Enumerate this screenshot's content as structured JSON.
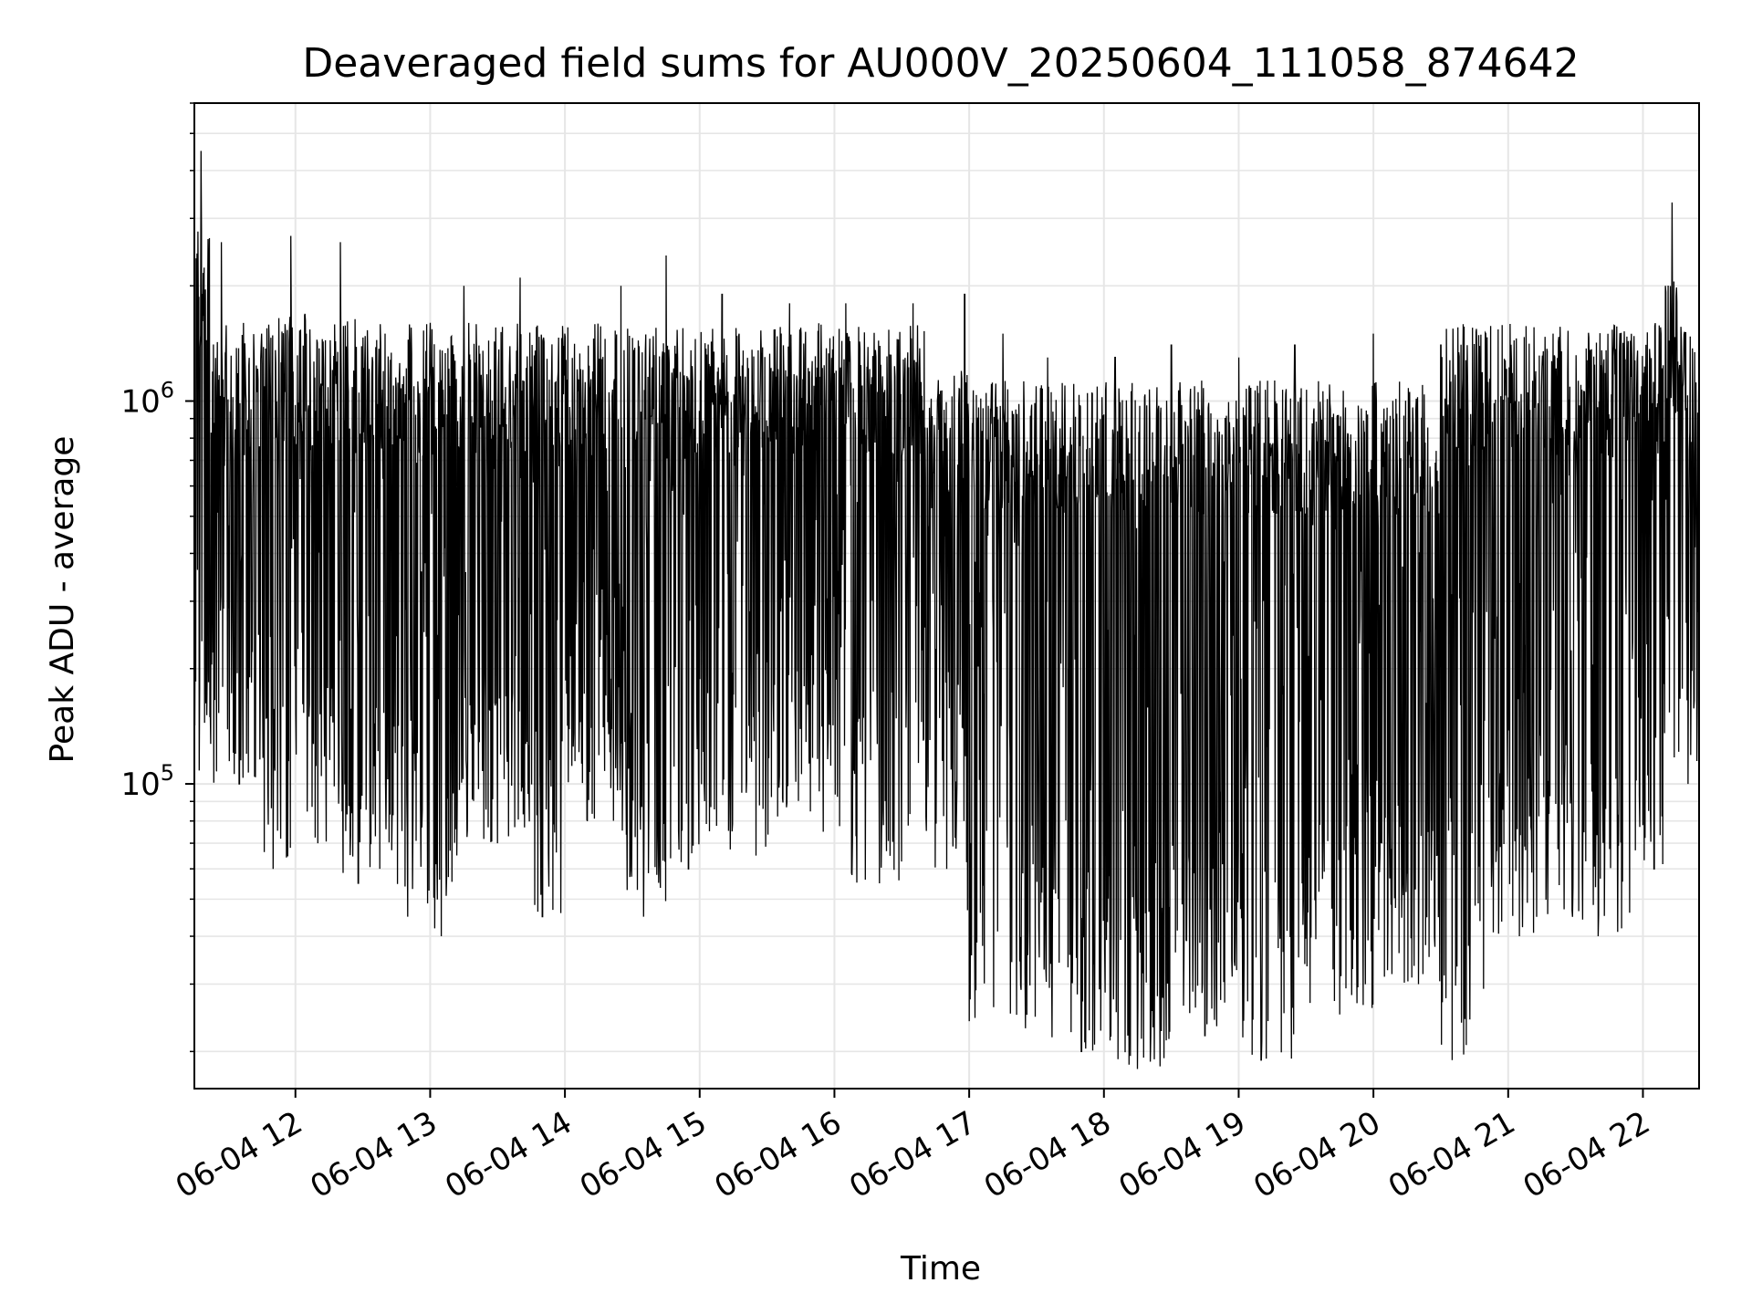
{
  "chart_data": {
    "type": "line",
    "title": "Deaveraged field sums for AU000V_20250604_111058_874642",
    "xlabel": "Time",
    "ylabel": "Peak ADU - average",
    "yscale": "log",
    "ylim": [
      16000,
      6000000
    ],
    "xlim": [
      "2025-06-04 11:15",
      "2025-06-04 22:25"
    ],
    "x_tick_labels": [
      "06-04 12",
      "06-04 13",
      "06-04 14",
      "06-04 15",
      "06-04 16",
      "06-04 17",
      "06-04 18",
      "06-04 19",
      "06-04 20",
      "06-04 21",
      "06-04 22"
    ],
    "x_tick_times": [
      "2025-06-04 12:00",
      "2025-06-04 13:00",
      "2025-06-04 14:00",
      "2025-06-04 15:00",
      "2025-06-04 16:00",
      "2025-06-04 17:00",
      "2025-06-04 18:00",
      "2025-06-04 19:00",
      "2025-06-04 20:00",
      "2025-06-04 21:00",
      "2025-06-04 22:00"
    ],
    "y_tick_values": [
      100000,
      1000000
    ],
    "y_tick_labels": [
      {
        "base": "10",
        "exp": "5"
      },
      {
        "base": "10",
        "exp": "6"
      }
    ],
    "grid": true,
    "line_color": "#000000",
    "grid_color": "#e6e6e6",
    "series": [
      {
        "x_start": "2025-06-04 11:15",
        "x_end": "2025-06-04 22:25",
        "points": [
          [
            "2025-06-04 11:15",
            900000
          ],
          [
            "2025-06-04 11:18",
            4500000
          ],
          [
            "2025-06-04 11:22",
            150000
          ],
          [
            "2025-06-04 11:27",
            2600000
          ],
          [
            "2025-06-04 11:35",
            100000
          ],
          [
            "2025-06-04 11:45",
            1500000
          ],
          [
            "2025-06-04 11:50",
            60000
          ],
          [
            "2025-06-04 11:58",
            2700000
          ],
          [
            "2025-06-04 12:05",
            400000
          ],
          [
            "2025-06-04 12:10",
            70000
          ],
          [
            "2025-06-04 12:20",
            2600000
          ],
          [
            "2025-06-04 12:28",
            55000
          ],
          [
            "2025-06-04 12:40",
            1500000
          ],
          [
            "2025-06-04 12:50",
            45000
          ],
          [
            "2025-06-04 13:00",
            1600000
          ],
          [
            "2025-06-04 13:05",
            40000
          ],
          [
            "2025-06-04 13:15",
            2000000
          ],
          [
            "2025-06-04 13:30",
            70000
          ],
          [
            "2025-06-04 13:40",
            2100000
          ],
          [
            "2025-06-04 13:50",
            45000
          ],
          [
            "2025-06-04 14:00",
            1500000
          ],
          [
            "2025-06-04 14:10",
            80000
          ],
          [
            "2025-06-04 14:25",
            2000000
          ],
          [
            "2025-06-04 14:35",
            45000
          ],
          [
            "2025-06-04 14:45",
            2400000
          ],
          [
            "2025-06-04 14:55",
            60000
          ],
          [
            "2025-06-04 15:10",
            1900000
          ],
          [
            "2025-06-04 15:25",
            65000
          ],
          [
            "2025-06-04 15:40",
            1800000
          ],
          [
            "2025-06-04 15:55",
            75000
          ],
          [
            "2025-06-04 16:05",
            1800000
          ],
          [
            "2025-06-04 16:20",
            55000
          ],
          [
            "2025-06-04 16:35",
            1800000
          ],
          [
            "2025-06-04 16:50",
            60000
          ],
          [
            "2025-06-04 16:58",
            1900000
          ],
          [
            "2025-06-04 17:00",
            24000
          ],
          [
            "2025-06-04 17:15",
            1500000
          ],
          [
            "2025-06-04 17:25",
            23000
          ],
          [
            "2025-06-04 17:35",
            1300000
          ],
          [
            "2025-06-04 17:50",
            20000
          ],
          [
            "2025-06-04 18:05",
            1300000
          ],
          [
            "2025-06-04 18:15",
            18000
          ],
          [
            "2025-06-04 18:30",
            1400000
          ],
          [
            "2025-06-04 18:45",
            22000
          ],
          [
            "2025-06-04 19:00",
            1300000
          ],
          [
            "2025-06-04 19:10",
            19000
          ],
          [
            "2025-06-04 19:25",
            1400000
          ],
          [
            "2025-06-04 19:45",
            25000
          ],
          [
            "2025-06-04 20:00",
            1500000
          ],
          [
            "2025-06-04 20:20",
            30000
          ],
          [
            "2025-06-04 20:30",
            1400000
          ],
          [
            "2025-06-04 20:35",
            19000
          ],
          [
            "2025-06-04 20:50",
            1500000
          ],
          [
            "2025-06-04 21:05",
            40000
          ],
          [
            "2025-06-04 21:20",
            1500000
          ],
          [
            "2025-06-04 21:40",
            40000
          ],
          [
            "2025-06-04 21:55",
            1300000
          ],
          [
            "2025-06-04 22:05",
            60000
          ],
          [
            "2025-06-04 22:10",
            2000000
          ],
          [
            "2025-06-04 22:13",
            3300000
          ],
          [
            "2025-06-04 22:20",
            100000
          ],
          [
            "2025-06-04 22:25",
            1300000
          ]
        ],
        "typical_range": [
          80000,
          1600000
        ]
      }
    ]
  }
}
